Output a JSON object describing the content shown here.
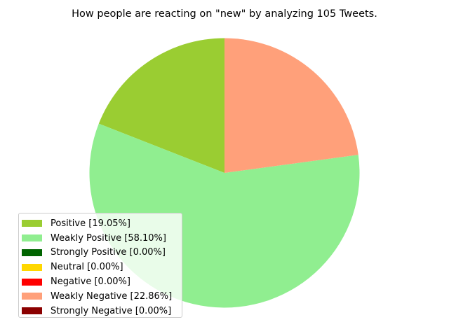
{
  "chart_data": {
    "type": "pie",
    "title": "How people are reacting on \"new\" by analyzing 105 Tweets.",
    "start_angle_deg": 90,
    "direction": "counterclockwise",
    "slices": [
      {
        "label": "Positive [19.05%]",
        "value": 19.05,
        "color": "#9acd32"
      },
      {
        "label": "Weakly Positive [58.10%]",
        "value": 58.1,
        "color": "#90ee90"
      },
      {
        "label": "Strongly Positive [0.00%]",
        "value": 0.0,
        "color": "#006400"
      },
      {
        "label": "Neutral [0.00%]",
        "value": 0.0,
        "color": "#ffd700"
      },
      {
        "label": "Negative [0.00%]",
        "value": 0.0,
        "color": "#ff0000"
      },
      {
        "label": "Weakly Negative [22.86%]",
        "value": 22.86,
        "color": "#ffa07a"
      },
      {
        "label": "Strongly Negative [0.00%]",
        "value": 0.0,
        "color": "#8b0000"
      }
    ],
    "legend_position": "lower-left"
  }
}
